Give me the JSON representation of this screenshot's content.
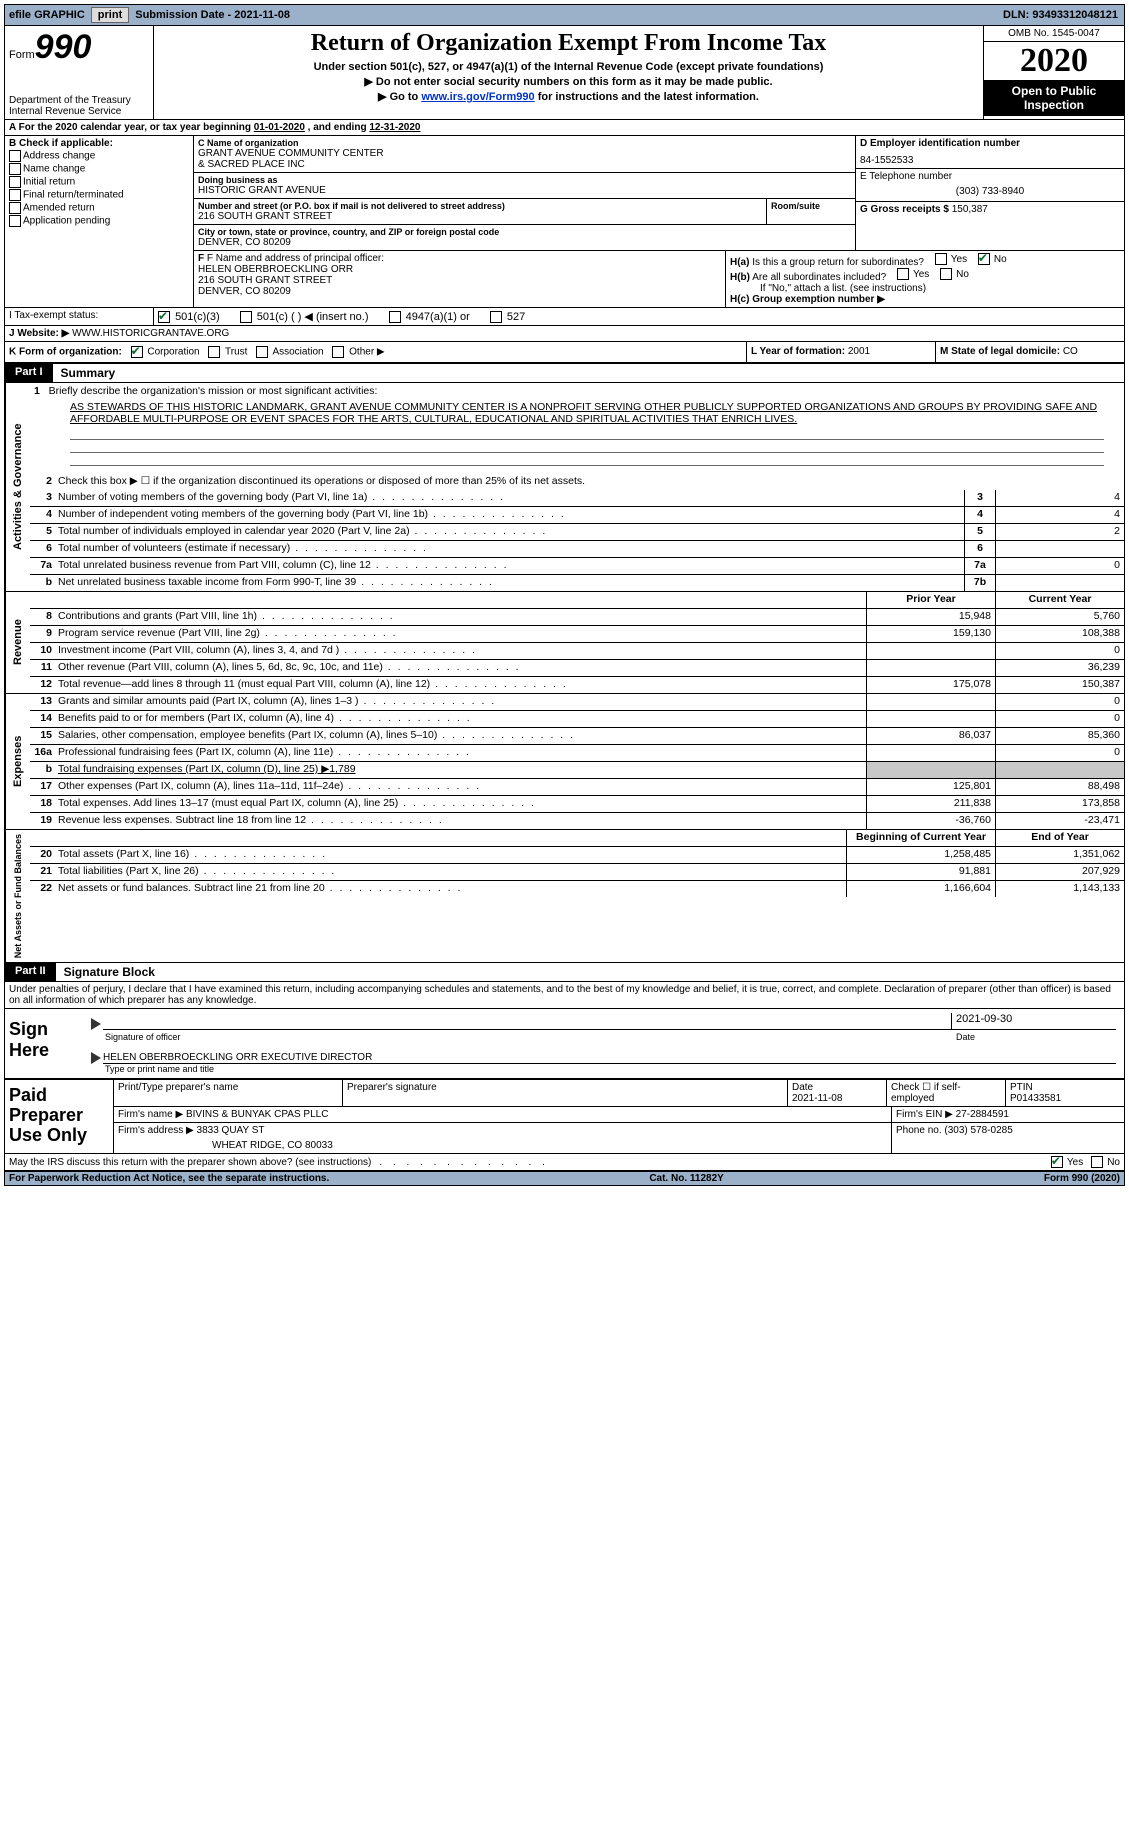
{
  "topbar": {
    "efile": "efile GRAPHIC",
    "print": "print",
    "subdate_lbl": "Submission Date - ",
    "subdate": "2021-11-08",
    "dln_lbl": "DLN: ",
    "dln": "93493312048121"
  },
  "header": {
    "form_prefix": "Form",
    "form_no": "990",
    "dept1": "Department of the Treasury",
    "dept2": "Internal Revenue Service",
    "title": "Return of Organization Exempt From Income Tax",
    "sub1": "Under section 501(c), 527, or 4947(a)(1) of the Internal Revenue Code (except private foundations)",
    "sub2": "▶ Do not enter social security numbers on this form as it may be made public.",
    "sub3_pre": "▶ Go to ",
    "sub3_link": "www.irs.gov/Form990",
    "sub3_post": " for instructions and the latest information.",
    "omb": "OMB No. 1545-0047",
    "year": "2020",
    "open": "Open to Public Inspection"
  },
  "period": {
    "label_a": "A For the 2020 calendar year, or tax year beginning ",
    "begin": "01-01-2020",
    "mid": " , and ending ",
    "end": "12-31-2020"
  },
  "boxB": {
    "hdr": "B Check if applicable:",
    "items": [
      "Address change",
      "Name change",
      "Initial return",
      "Final return/terminated",
      "Amended return",
      "Application pending"
    ]
  },
  "boxC": {
    "lbl": "C Name of organization",
    "name1": "GRANT AVENUE COMMUNITY CENTER",
    "name2": "& SACRED PLACE INC",
    "dba_lbl": "Doing business as",
    "dba": "HISTORIC GRANT AVENUE",
    "street_lbl": "Number and street (or P.O. box if mail is not delivered to street address)",
    "room_lbl": "Room/suite",
    "street": "216 SOUTH GRANT STREET",
    "city_lbl": "City or town, state or province, country, and ZIP or foreign postal code",
    "city": "DENVER, CO  80209"
  },
  "boxD": {
    "lbl": "D Employer identification number",
    "val": "84-1552533"
  },
  "boxE": {
    "lbl": "E Telephone number",
    "val": "(303) 733-8940"
  },
  "boxG": {
    "lbl": "G Gross receipts $ ",
    "val": "150,387"
  },
  "boxF": {
    "lbl": "F Name and address of principal officer:",
    "name": "HELEN OBERBROECKLING ORR",
    "addr1": "216 SOUTH GRANT STREET",
    "addr2": "DENVER, CO  80209"
  },
  "boxH": {
    "a_lbl": "H(a)  Is this a group return for subordinates?",
    "b_lbl": "H(b)  Are all subordinates included?",
    "b_note": "If \"No,\" attach a list. (see instructions)",
    "c_lbl": "H(c)  Group exemption number ▶",
    "yes": "Yes",
    "no": "No"
  },
  "boxI": {
    "lbl": "I   Tax-exempt status:",
    "opts": [
      "501(c)(3)",
      "501(c) (  ) ◀ (insert no.)",
      "4947(a)(1) or",
      "527"
    ]
  },
  "boxJ": {
    "lbl": "J   Website: ▶",
    "val": "WWW.HISTORICGRANTAVE.ORG"
  },
  "boxK": {
    "lbl": "K Form of organization:",
    "opts": [
      "Corporation",
      "Trust",
      "Association",
      "Other ▶"
    ]
  },
  "boxL": {
    "lbl": "L Year of formation: ",
    "val": "2001"
  },
  "boxM": {
    "lbl": "M State of legal domicile: ",
    "val": "CO"
  },
  "part1": {
    "label": "Part I",
    "title": "Summary"
  },
  "mission": {
    "prompt": "1   Briefly describe the organization's mission or most significant activities:",
    "text": "AS STEWARDS OF THIS HISTORIC LANDMARK, GRANT AVENUE COMMUNITY CENTER IS A NONPROFIT SERVING OTHER PUBLICLY SUPPORTED ORGANIZATIONS AND GROUPS BY PROVIDING SAFE AND AFFORDABLE MULTI-PURPOSE OR EVENT SPACES FOR THE ARTS, CULTURAL, EDUCATIONAL AND SPIRITUAL ACTIVITIES THAT ENRICH LIVES."
  },
  "gov_rows": [
    {
      "n": "2",
      "d": "Check this box ▶ ☐ if the organization discontinued its operations or disposed of more than 25% of its net assets.",
      "box": "",
      "v": ""
    },
    {
      "n": "3",
      "d": "Number of voting members of the governing body (Part VI, line 1a)",
      "box": "3",
      "v": "4"
    },
    {
      "n": "4",
      "d": "Number of independent voting members of the governing body (Part VI, line 1b)",
      "box": "4",
      "v": "4"
    },
    {
      "n": "5",
      "d": "Total number of individuals employed in calendar year 2020 (Part V, line 2a)",
      "box": "5",
      "v": "2"
    },
    {
      "n": "6",
      "d": "Total number of volunteers (estimate if necessary)",
      "box": "6",
      "v": ""
    },
    {
      "n": "7a",
      "d": "Total unrelated business revenue from Part VIII, column (C), line 12",
      "box": "7a",
      "v": "0"
    },
    {
      "n": "b",
      "d": "Net unrelated business taxable income from Form 990-T, line 39",
      "box": "7b",
      "v": ""
    }
  ],
  "col_hdrs": {
    "prior": "Prior Year",
    "current": "Current Year",
    "begin": "Beginning of Current Year",
    "end": "End of Year"
  },
  "rev_rows": [
    {
      "n": "8",
      "d": "Contributions and grants (Part VIII, line 1h)",
      "p": "15,948",
      "c": "5,760"
    },
    {
      "n": "9",
      "d": "Program service revenue (Part VIII, line 2g)",
      "p": "159,130",
      "c": "108,388"
    },
    {
      "n": "10",
      "d": "Investment income (Part VIII, column (A), lines 3, 4, and 7d )",
      "p": "",
      "c": "0"
    },
    {
      "n": "11",
      "d": "Other revenue (Part VIII, column (A), lines 5, 6d, 8c, 9c, 10c, and 11e)",
      "p": "",
      "c": "36,239"
    },
    {
      "n": "12",
      "d": "Total revenue—add lines 8 through 11 (must equal Part VIII, column (A), line 12)",
      "p": "175,078",
      "c": "150,387"
    }
  ],
  "exp_rows": [
    {
      "n": "13",
      "d": "Grants and similar amounts paid (Part IX, column (A), lines 1–3 )",
      "p": "",
      "c": "0"
    },
    {
      "n": "14",
      "d": "Benefits paid to or for members (Part IX, column (A), line 4)",
      "p": "",
      "c": "0"
    },
    {
      "n": "15",
      "d": "Salaries, other compensation, employee benefits (Part IX, column (A), lines 5–10)",
      "p": "86,037",
      "c": "85,360"
    },
    {
      "n": "16a",
      "d": "Professional fundraising fees (Part IX, column (A), line 11e)",
      "p": "",
      "c": "0"
    },
    {
      "n": "b",
      "d": "Total fundraising expenses (Part IX, column (D), line 25) ▶1,789",
      "p": "shade",
      "c": "shade"
    },
    {
      "n": "17",
      "d": "Other expenses (Part IX, column (A), lines 11a–11d, 11f–24e)",
      "p": "125,801",
      "c": "88,498"
    },
    {
      "n": "18",
      "d": "Total expenses. Add lines 13–17 (must equal Part IX, column (A), line 25)",
      "p": "211,838",
      "c": "173,858"
    },
    {
      "n": "19",
      "d": "Revenue less expenses. Subtract line 18 from line 12",
      "p": "-36,760",
      "c": "-23,471"
    }
  ],
  "na_rows": [
    {
      "n": "20",
      "d": "Total assets (Part X, line 16)",
      "p": "1,258,485",
      "c": "1,351,062"
    },
    {
      "n": "21",
      "d": "Total liabilities (Part X, line 26)",
      "p": "91,881",
      "c": "207,929"
    },
    {
      "n": "22",
      "d": "Net assets or fund balances. Subtract line 21 from line 20",
      "p": "1,166,604",
      "c": "1,143,133"
    }
  ],
  "part2": {
    "label": "Part II",
    "title": "Signature Block"
  },
  "penalties": "Under penalties of perjury, I declare that I have examined this return, including accompanying schedules and statements, and to the best of my knowledge and belief, it is true, correct, and complete. Declaration of preparer (other than officer) is based on all information of which preparer has any knowledge.",
  "sign": {
    "here": "Sign Here",
    "sig_lbl": "Signature of officer",
    "date_lbl": "Date",
    "date": "2021-09-30",
    "name": "HELEN OBERBROECKLING ORR  EXECUTIVE DIRECTOR",
    "name_lbl": "Type or print name and title"
  },
  "paid": {
    "title": "Paid Preparer Use Only",
    "h1": "Print/Type preparer's name",
    "h2": "Preparer's signature",
    "h3_lbl": "Date",
    "h3": "2021-11-08",
    "h4": "Check ☐ if self-employed",
    "h5_lbl": "PTIN",
    "h5": "P01433581",
    "firm_name_lbl": "Firm's name      ▶",
    "firm_name": "BIVINS & BUNYAK CPAS PLLC",
    "firm_ein_lbl": "Firm's EIN ▶",
    "firm_ein": "27-2884591",
    "firm_addr_lbl": "Firm's address ▶",
    "firm_addr1": "3833 QUAY ST",
    "firm_addr2": "WHEAT RIDGE, CO  80033",
    "phone_lbl": "Phone no. ",
    "phone": "(303) 578-0285"
  },
  "discuss": {
    "q": "May the IRS discuss this return with the preparer shown above? (see instructions)",
    "yes": "Yes",
    "no": "No"
  },
  "footer": {
    "left": "For Paperwork Reduction Act Notice, see the separate instructions.",
    "mid": "Cat. No. 11282Y",
    "right": "Form 990 (2020)"
  },
  "vtabs": {
    "gov": "Activities & Governance",
    "rev": "Revenue",
    "exp": "Expenses",
    "na": "Net Assets or Fund Balances"
  },
  "style": {
    "background": "#ffffff",
    "topbar_bg": "#9bb0c9",
    "link_color": "#0033cc",
    "check_color": "#0a6b2e",
    "shade": "#c8c8c8"
  }
}
